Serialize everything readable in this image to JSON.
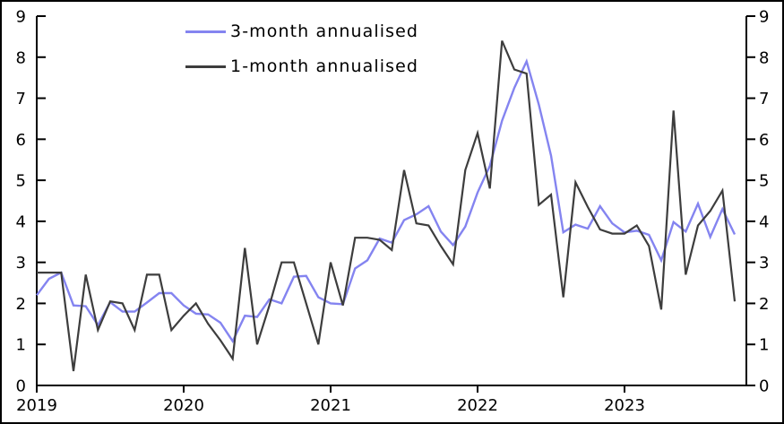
{
  "chart_data": {
    "type": "line",
    "title": "",
    "xlabel": "",
    "ylabel": "",
    "ylim": [
      0,
      9
    ],
    "yticks": [
      0,
      1,
      2,
      3,
      4,
      5,
      6,
      7,
      8,
      9
    ],
    "xtick_labels": [
      "2019",
      "2020",
      "2021",
      "2022",
      "2023"
    ],
    "xtick_month_index": [
      0,
      12,
      24,
      36,
      48
    ],
    "grid": false,
    "dual_y_axis": true,
    "legend_position": "top-inside",
    "axis_color": "#000000",
    "categories": [
      "2019-01",
      "2019-02",
      "2019-03",
      "2019-04",
      "2019-05",
      "2019-06",
      "2019-07",
      "2019-08",
      "2019-09",
      "2019-10",
      "2019-11",
      "2019-12",
      "2020-01",
      "2020-02",
      "2020-03",
      "2020-04",
      "2020-05",
      "2020-06",
      "2020-07",
      "2020-08",
      "2020-09",
      "2020-10",
      "2020-11",
      "2020-12",
      "2021-01",
      "2021-02",
      "2021-03",
      "2021-04",
      "2021-05",
      "2021-06",
      "2021-07",
      "2021-08",
      "2021-09",
      "2021-10",
      "2021-11",
      "2021-12",
      "2022-01",
      "2022-02",
      "2022-03",
      "2022-04",
      "2022-05",
      "2022-06",
      "2022-07",
      "2022-08",
      "2022-09",
      "2022-10",
      "2022-11",
      "2022-12",
      "2023-01",
      "2023-02",
      "2023-03",
      "2023-04",
      "2023-05",
      "2023-06",
      "2023-07",
      "2023-08",
      "2023-09",
      "2023-10"
    ],
    "series": [
      {
        "name": "3-month annualised",
        "color": "#8484f0",
        "stroke_width": 2.4,
        "values": [
          2.2,
          2.6,
          2.75,
          1.95,
          1.93,
          1.47,
          2.03,
          1.8,
          1.8,
          2.02,
          2.25,
          2.25,
          1.95,
          1.75,
          1.73,
          1.53,
          1.08,
          1.7,
          1.67,
          2.1,
          2.0,
          2.65,
          2.67,
          2.15,
          2.0,
          1.98,
          2.85,
          3.05,
          3.58,
          3.48,
          4.03,
          4.17,
          4.37,
          3.75,
          3.42,
          3.87,
          4.7,
          5.35,
          6.45,
          7.25,
          7.9,
          6.85,
          5.6,
          3.73,
          3.92,
          3.82,
          4.37,
          3.95,
          3.73,
          3.77,
          3.67,
          3.05,
          3.98,
          3.75,
          4.43,
          3.62,
          4.3,
          3.68
        ]
      },
      {
        "name": "1-month annualised",
        "color": "#3d3d3d",
        "stroke_width": 2.2,
        "values": [
          2.75,
          2.75,
          2.75,
          0.35,
          2.7,
          1.35,
          2.05,
          2.0,
          1.35,
          2.7,
          2.7,
          1.35,
          1.7,
          2.0,
          1.5,
          1.1,
          0.65,
          3.35,
          1.0,
          1.95,
          3.0,
          3.0,
          2.0,
          1.0,
          3.0,
          1.95,
          3.6,
          3.6,
          3.55,
          3.3,
          5.25,
          3.95,
          3.9,
          3.4,
          2.95,
          5.25,
          6.15,
          4.8,
          8.4,
          7.7,
          7.6,
          4.4,
          4.65,
          2.15,
          4.95,
          4.35,
          3.8,
          3.7,
          3.7,
          3.9,
          3.4,
          1.85,
          6.7,
          2.7,
          3.9,
          4.25,
          4.75,
          2.05
        ]
      }
    ]
  }
}
